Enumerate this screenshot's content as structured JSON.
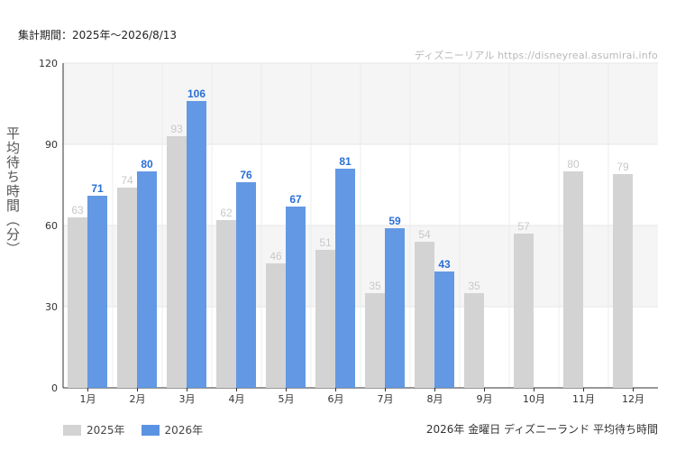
{
  "header": {
    "period": "集計期間：2025年～2026/8/13",
    "watermark": "ディズニーリアル https://disneyreal.asumirai.info"
  },
  "footer": {
    "title": "2026年 金曜日 ディズニーランド 平均待ち時間"
  },
  "colors": {
    "series_2025": "#d3d3d3",
    "series_2026": "#5b93e3",
    "label_2025": "#c8c8c8",
    "label_2026": "#2a6fd6",
    "band": "#f5f5f5"
  },
  "chart_data": {
    "type": "bar",
    "ylabel": "平均待ち時間（分）",
    "ylim": [
      0,
      120
    ],
    "yticks": [
      0,
      30,
      60,
      90,
      120
    ],
    "categories": [
      "1月",
      "2月",
      "3月",
      "4月",
      "5月",
      "6月",
      "7月",
      "8月",
      "9月",
      "10月",
      "11月",
      "12月"
    ],
    "series": [
      {
        "name": "2025年",
        "values": [
          63,
          74,
          93,
          62,
          46,
          51,
          35,
          54,
          35,
          57,
          80,
          79
        ]
      },
      {
        "name": "2026年",
        "values": [
          71,
          80,
          106,
          76,
          67,
          81,
          59,
          43,
          null,
          null,
          null,
          null
        ]
      }
    ],
    "legend_position": "bottom-left",
    "grid": true
  }
}
